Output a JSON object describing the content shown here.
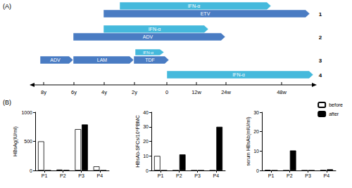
{
  "panel_a": {
    "label": "(A)",
    "timeline": [
      "8y",
      "6y",
      "4y",
      "2y",
      "0",
      "12w",
      "24w",
      "48w"
    ],
    "rows": [
      {
        "label": "1",
        "bars": [
          "IFN-α",
          "ETV"
        ]
      },
      {
        "label": "2",
        "bars": [
          "IFN-α",
          "ADV"
        ]
      },
      {
        "label": "3",
        "bars": [
          "ADV",
          "LAM",
          "TDF",
          "IFN-α"
        ]
      },
      {
        "label": "4",
        "bars": [
          "IFN-α"
        ]
      }
    ]
  },
  "panel_b": {
    "label": "(B)"
  },
  "chart_data": [
    {
      "type": "bar",
      "ylabel": "HBsAg(IU/ml)",
      "categories": [
        "P1",
        "P2",
        "P3",
        "P4"
      ],
      "ylim": [
        0,
        1000
      ],
      "yticks": [
        0,
        500,
        1000
      ],
      "grid": false,
      "series": [
        {
          "name": "before",
          "color": "#ffffff",
          "values": [
            500,
            15,
            710,
            70
          ]
        },
        {
          "name": "after",
          "color": "#000000",
          "values": [
            0,
            5,
            790,
            0
          ]
        }
      ]
    },
    {
      "type": "bar",
      "ylabel": "HBsAb-SFCs/10⁶PBMC",
      "categories": [
        "P1",
        "P2",
        "P3",
        "P4"
      ],
      "ylim": [
        0,
        40
      ],
      "yticks": [
        0,
        10,
        20,
        30,
        40
      ],
      "grid": false,
      "series": [
        {
          "name": "before",
          "color": "#ffffff",
          "values": [
            10,
            0,
            0,
            0
          ]
        },
        {
          "name": "after",
          "color": "#000000",
          "values": [
            0,
            11,
            0,
            30
          ]
        }
      ]
    },
    {
      "type": "bar",
      "ylabel": "serum HBsAb(mIU/ml)",
      "categories": [
        "P1",
        "P2",
        "P3",
        "P4"
      ],
      "ylim": [
        0,
        30
      ],
      "yticks": [
        0,
        10,
        20,
        30
      ],
      "grid": false,
      "legend": "upper right",
      "series": [
        {
          "name": "before",
          "color": "#ffffff",
          "values": [
            0.3,
            0,
            0,
            0.2
          ]
        },
        {
          "name": "after",
          "color": "#000000",
          "values": [
            0,
            10.3,
            0,
            0.6
          ]
        }
      ]
    }
  ]
}
